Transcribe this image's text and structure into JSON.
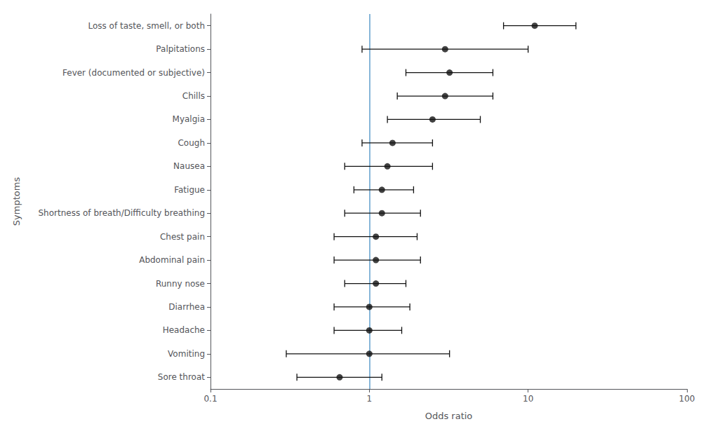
{
  "chart_data": {
    "type": "scatter",
    "categories": [
      "Loss of taste, smell, or both",
      "Palpitations",
      "Fever (documented or subjective)",
      "Chills",
      "Myalgia",
      "Cough",
      "Nausea",
      "Fatigue",
      "Shortness of breath/Difficulty breathing",
      "Chest pain",
      "Abdominal pain",
      "Runny nose",
      "Diarrhea",
      "Headache",
      "Vomiting",
      "Sore throat"
    ],
    "values": [
      11.0,
      3.0,
      3.2,
      3.0,
      2.5,
      1.4,
      1.3,
      1.2,
      1.2,
      1.1,
      1.1,
      1.1,
      1.0,
      1.0,
      1.0,
      0.65
    ],
    "ci_low": [
      7.0,
      0.9,
      1.7,
      1.5,
      1.3,
      0.9,
      0.7,
      0.8,
      0.7,
      0.6,
      0.6,
      0.7,
      0.6,
      0.6,
      0.3,
      0.35
    ],
    "ci_high": [
      20.0,
      10.0,
      6.0,
      6.0,
      5.0,
      2.5,
      2.5,
      1.9,
      2.1,
      2.0,
      2.1,
      1.7,
      1.8,
      1.6,
      3.2,
      1.2
    ],
    "xlabel": "Odds ratio",
    "ylabel": "Symptoms",
    "xlim": [
      0.1,
      100
    ],
    "xticks": [
      0.1,
      1,
      10,
      100
    ],
    "log": "x",
    "grid": false,
    "color": "#111111",
    "marker": "circle",
    "ref_line": {
      "value": 1.0,
      "color": "#7bafd4"
    }
  }
}
